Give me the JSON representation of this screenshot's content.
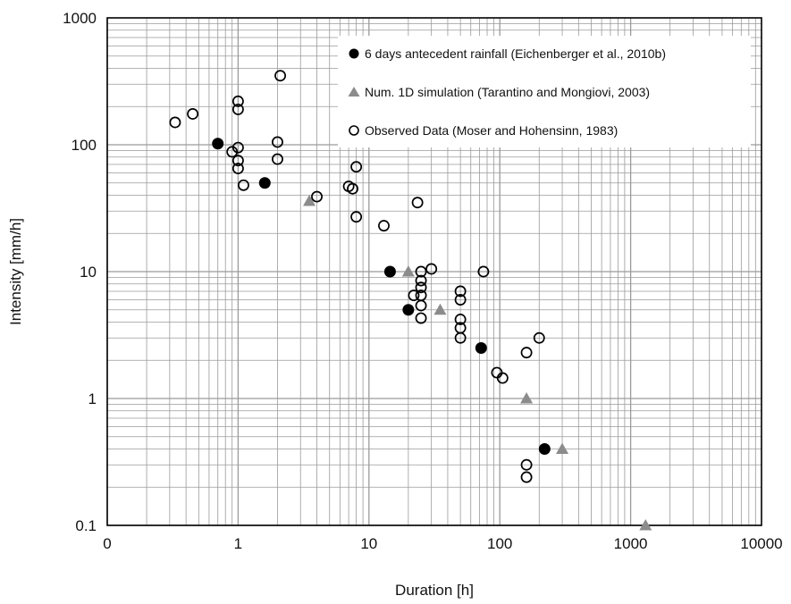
{
  "chart_data": {
    "type": "scatter",
    "xlabel": "Duration [h]",
    "ylabel": "Intensity [mm/h]",
    "x_scale": "log",
    "y_scale": "log",
    "xlim": [
      0.1,
      10000
    ],
    "ylim": [
      0.1,
      1000
    ],
    "x_ticks": [
      "0",
      "1",
      "10",
      "100",
      "1000",
      "10000"
    ],
    "y_ticks": [
      "0.1",
      "1",
      "10",
      "100",
      "1000"
    ],
    "grid": true,
    "legend_position": "top-right",
    "colors": {
      "black": "#000000",
      "gray": "#8c8c8c",
      "grid": "#9a9a9a"
    },
    "series": [
      {
        "name": "6 days antecedent rainfall (Eichenberger et al., 2010b)",
        "marker": "filled-circle",
        "points": [
          [
            0.7,
            102
          ],
          [
            1.6,
            50
          ],
          [
            14.5,
            10
          ],
          [
            20,
            5
          ],
          [
            72,
            2.5
          ],
          [
            220,
            0.4
          ]
        ]
      },
      {
        "name": "Num. 1D simulation (Tarantino and Mongiovi, 2003)",
        "marker": "gray-triangle",
        "points": [
          [
            3.5,
            36
          ],
          [
            20,
            10
          ],
          [
            35,
            5
          ],
          [
            160,
            1
          ],
          [
            300,
            0.4
          ],
          [
            1300,
            0.1
          ]
        ]
      },
      {
        "name": "Observed Data (Moser and Hohensinn, 1983)",
        "marker": "open-circle",
        "points": [
          [
            0.33,
            150
          ],
          [
            0.45,
            175
          ],
          [
            0.9,
            88
          ],
          [
            1.0,
            95
          ],
          [
            1.0,
            75
          ],
          [
            1.0,
            65
          ],
          [
            1.0,
            190
          ],
          [
            1.0,
            220
          ],
          [
            1.1,
            48
          ],
          [
            2.0,
            105
          ],
          [
            2.0,
            77
          ],
          [
            2.1,
            350
          ],
          [
            4.0,
            39
          ],
          [
            7.0,
            47
          ],
          [
            7.5,
            45
          ],
          [
            8.0,
            67
          ],
          [
            8.0,
            27
          ],
          [
            13,
            23
          ],
          [
            22,
            6.5
          ],
          [
            23.5,
            35
          ],
          [
            25,
            10
          ],
          [
            25,
            8.5
          ],
          [
            25,
            7.5
          ],
          [
            25,
            6.5
          ],
          [
            25,
            5.4
          ],
          [
            25,
            4.3
          ],
          [
            30,
            10.5
          ],
          [
            50,
            7
          ],
          [
            50,
            6
          ],
          [
            50,
            4.2
          ],
          [
            50,
            3.6
          ],
          [
            50,
            3
          ],
          [
            75,
            10
          ],
          [
            95,
            1.6
          ],
          [
            105,
            1.45
          ],
          [
            160,
            2.3
          ],
          [
            200,
            3
          ],
          [
            160,
            0.3
          ],
          [
            160,
            0.24
          ]
        ]
      }
    ]
  }
}
